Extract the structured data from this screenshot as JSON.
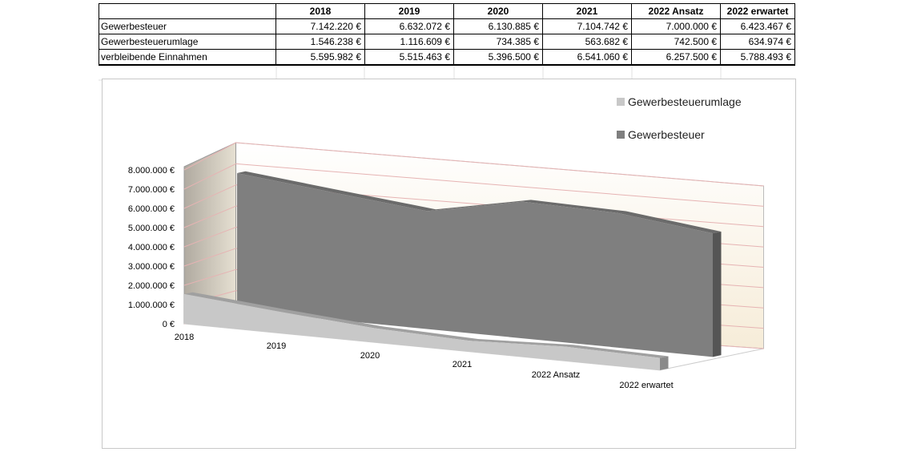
{
  "table": {
    "headers": [
      "",
      "2018",
      "2019",
      "2020",
      "2021",
      "2022 Ansatz",
      "2022 erwartet"
    ],
    "rows": [
      {
        "label": "Gewerbesteuer",
        "values": [
          "7.142.220 €",
          "6.632.072 €",
          "6.130.885 €",
          "7.104.742 €",
          "7.000.000 €",
          "6.423.467 €"
        ]
      },
      {
        "label": "Gewerbesteuerumlage",
        "values": [
          "1.546.238 €",
          "1.116.609 €",
          "734.385 €",
          "563.682 €",
          "742.500 €",
          "634.974 €"
        ]
      },
      {
        "label": "verbleibende Einnahmen",
        "values": [
          "5.595.982 €",
          "5.515.463 €",
          "5.396.500 €",
          "6.541.060 €",
          "6.257.500 €",
          "5.788.493 €"
        ]
      }
    ]
  },
  "chart_data": {
    "type": "area",
    "title": "",
    "categories": [
      "2018",
      "2019",
      "2020",
      "2021",
      "2022 Ansatz",
      "2022 erwartet"
    ],
    "series": [
      {
        "name": "Gewerbesteuerumlage",
        "values": [
          1546238,
          1116609,
          734385,
          563682,
          742500,
          634974
        ],
        "color": "#c8c8c8"
      },
      {
        "name": "Gewerbesteuer",
        "values": [
          7142220,
          6632072,
          6130885,
          7104742,
          7000000,
          6423467
        ],
        "color": "#7f7f7f"
      }
    ],
    "y_ticks": [
      "0 €",
      "1.000.000 €",
      "2.000.000 €",
      "3.000.000 €",
      "4.000.000 €",
      "5.000.000 €",
      "6.000.000 €",
      "7.000.000 €",
      "8.000.000 €"
    ],
    "ylim": [
      0,
      8000000
    ],
    "legend_position": "top-right",
    "style": "3d"
  }
}
